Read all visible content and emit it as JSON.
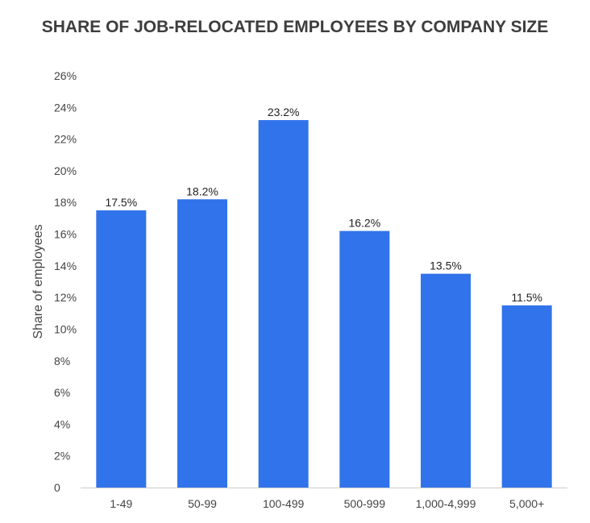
{
  "chart_data": {
    "type": "bar",
    "title": "SHARE OF JOB-RELOCATED EMPLOYEES BY COMPANY SIZE",
    "xlabel": "",
    "ylabel": "Share of employees",
    "categories": [
      "1-49",
      "50-99",
      "100-499",
      "500-999",
      "1,000-4,999",
      "5,000+"
    ],
    "values": [
      17.5,
      18.2,
      23.2,
      16.2,
      13.5,
      11.5
    ],
    "value_labels": [
      "17.5%",
      "18.2%",
      "23.2%",
      "16.2%",
      "13.5%",
      "11.5%"
    ],
    "ylim": [
      0,
      26
    ],
    "yticks": [
      0,
      2,
      4,
      6,
      8,
      10,
      12,
      14,
      16,
      18,
      20,
      22,
      24,
      26
    ],
    "ytick_labels": [
      "0",
      "2%",
      "4%",
      "6%",
      "8%",
      "10%",
      "12%",
      "14%",
      "16%",
      "18%",
      "20%",
      "22%",
      "24%",
      "26%"
    ],
    "grid": false,
    "legend": "none",
    "bar_color": "#3173ea",
    "axis_color": "#cccccc",
    "text_color": "#444444"
  }
}
